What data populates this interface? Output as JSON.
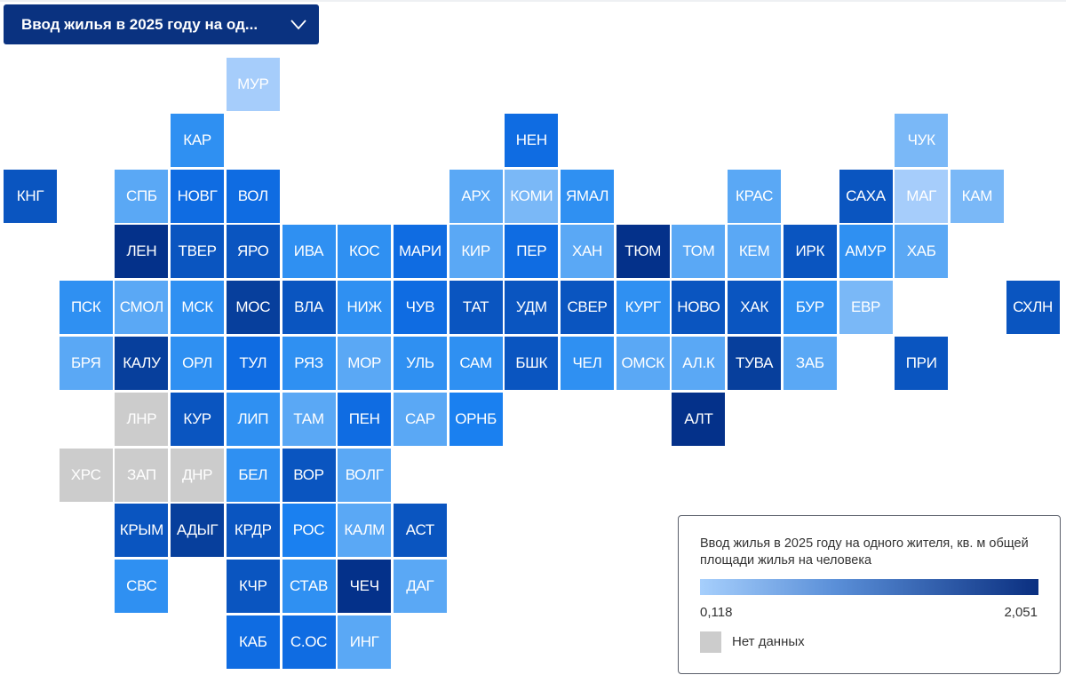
{
  "dropdown": {
    "label": "Ввод жилья в 2025 году на од...",
    "icon": "chevron-down-icon"
  },
  "legend": {
    "title": "Ввод жилья в 2025 году на одного жителя, кв. м общей площади жилья на человека",
    "min_label": "0,118",
    "max_label": "2,051",
    "no_data_label": "Нет данных",
    "color_low": "#a6cffc",
    "color_high": "#0a2f80",
    "no_data_color": "#cccccc"
  },
  "chart_data": {
    "type": "heatmap",
    "title": "Ввод жилья в 2025 году на одного жителя, кв. м общей площади жилья на человека",
    "value_range": [
      0.118,
      2.051
    ],
    "note": "values estimated from tile color shade",
    "regions": [
      {
        "name": "МУР",
        "col": 4,
        "row": 0,
        "value": 0.25
      },
      {
        "name": "КАР",
        "col": 3,
        "row": 1,
        "value": 0.9
      },
      {
        "name": "НЕН",
        "col": 9,
        "row": 1,
        "value": 1.15
      },
      {
        "name": "ЧУК",
        "col": 16,
        "row": 1,
        "value": 0.45
      },
      {
        "name": "КНГ",
        "col": 0,
        "row": 2,
        "value": 1.4
      },
      {
        "name": "СПБ",
        "col": 2,
        "row": 2,
        "value": 0.65
      },
      {
        "name": "НОВГ",
        "col": 3,
        "row": 2,
        "value": 1.15
      },
      {
        "name": "ВОЛ",
        "col": 4,
        "row": 2,
        "value": 1.15
      },
      {
        "name": "АРХ",
        "col": 8,
        "row": 2,
        "value": 0.65
      },
      {
        "name": "КОМИ",
        "col": 9,
        "row": 2,
        "value": 0.45
      },
      {
        "name": "ЯМАЛ",
        "col": 10,
        "row": 2,
        "value": 0.9
      },
      {
        "name": "КРАС",
        "col": 13,
        "row": 2,
        "value": 0.65
      },
      {
        "name": "САХА",
        "col": 15,
        "row": 2,
        "value": 1.4
      },
      {
        "name": "МАГ",
        "col": 16,
        "row": 2,
        "value": 0.25
      },
      {
        "name": "КАМ",
        "col": 17,
        "row": 2,
        "value": 0.45
      },
      {
        "name": "ЛЕН",
        "col": 2,
        "row": 3,
        "value": 1.95
      },
      {
        "name": "ТВЕР",
        "col": 3,
        "row": 3,
        "value": 1.4
      },
      {
        "name": "ЯРО",
        "col": 4,
        "row": 3,
        "value": 1.4
      },
      {
        "name": "ИВА",
        "col": 5,
        "row": 3,
        "value": 0.9
      },
      {
        "name": "КОС",
        "col": 6,
        "row": 3,
        "value": 0.9
      },
      {
        "name": "МАРИ",
        "col": 7,
        "row": 3,
        "value": 1.15
      },
      {
        "name": "КИР",
        "col": 8,
        "row": 3,
        "value": 0.65
      },
      {
        "name": "ПЕР",
        "col": 9,
        "row": 3,
        "value": 1.15
      },
      {
        "name": "ХАН",
        "col": 10,
        "row": 3,
        "value": 0.65
      },
      {
        "name": "ТЮМ",
        "col": 11,
        "row": 3,
        "value": 1.95
      },
      {
        "name": "ТОМ",
        "col": 12,
        "row": 3,
        "value": 0.65
      },
      {
        "name": "КЕМ",
        "col": 13,
        "row": 3,
        "value": 0.65
      },
      {
        "name": "ИРК",
        "col": 14,
        "row": 3,
        "value": 1.4
      },
      {
        "name": "АМУР",
        "col": 15,
        "row": 3,
        "value": 0.9
      },
      {
        "name": "ХАБ",
        "col": 16,
        "row": 3,
        "value": 0.65
      },
      {
        "name": "ПСК",
        "col": 1,
        "row": 4,
        "value": 0.9
      },
      {
        "name": "СМОЛ",
        "col": 2,
        "row": 4,
        "value": 0.65
      },
      {
        "name": "МСК",
        "col": 3,
        "row": 4,
        "value": 0.9
      },
      {
        "name": "МОС",
        "col": 4,
        "row": 4,
        "value": 1.7
      },
      {
        "name": "ВЛА",
        "col": 5,
        "row": 4,
        "value": 1.4
      },
      {
        "name": "НИЖ",
        "col": 6,
        "row": 4,
        "value": 0.9
      },
      {
        "name": "ЧУВ",
        "col": 7,
        "row": 4,
        "value": 1.15
      },
      {
        "name": "ТАТ",
        "col": 8,
        "row": 4,
        "value": 1.4
      },
      {
        "name": "УДМ",
        "col": 9,
        "row": 4,
        "value": 1.4
      },
      {
        "name": "СВЕР",
        "col": 10,
        "row": 4,
        "value": 1.4
      },
      {
        "name": "КУРГ",
        "col": 11,
        "row": 4,
        "value": 0.9
      },
      {
        "name": "НОВО",
        "col": 12,
        "row": 4,
        "value": 1.4
      },
      {
        "name": "ХАК",
        "col": 13,
        "row": 4,
        "value": 1.4
      },
      {
        "name": "БУР",
        "col": 14,
        "row": 4,
        "value": 0.9
      },
      {
        "name": "ЕВР",
        "col": 15,
        "row": 4,
        "value": 0.45
      },
      {
        "name": "СХЛН",
        "col": 18,
        "row": 4,
        "value": 1.4
      },
      {
        "name": "БРЯ",
        "col": 1,
        "row": 5,
        "value": 0.65
      },
      {
        "name": "КАЛУ",
        "col": 2,
        "row": 5,
        "value": 1.7
      },
      {
        "name": "ОРЛ",
        "col": 3,
        "row": 5,
        "value": 0.9
      },
      {
        "name": "ТУЛ",
        "col": 4,
        "row": 5,
        "value": 1.15
      },
      {
        "name": "РЯЗ",
        "col": 5,
        "row": 5,
        "value": 0.9
      },
      {
        "name": "МОР",
        "col": 6,
        "row": 5,
        "value": 0.65
      },
      {
        "name": "УЛЬ",
        "col": 7,
        "row": 5,
        "value": 0.9
      },
      {
        "name": "САМ",
        "col": 8,
        "row": 5,
        "value": 0.8
      },
      {
        "name": "БШК",
        "col": 9,
        "row": 5,
        "value": 1.4
      },
      {
        "name": "ЧЕЛ",
        "col": 10,
        "row": 5,
        "value": 0.9
      },
      {
        "name": "ОМСК",
        "col": 11,
        "row": 5,
        "value": 0.65
      },
      {
        "name": "АЛ.К",
        "col": 12,
        "row": 5,
        "value": 0.65
      },
      {
        "name": "ТУВА",
        "col": 13,
        "row": 5,
        "value": 1.7
      },
      {
        "name": "ЗАБ",
        "col": 14,
        "row": 5,
        "value": 0.65
      },
      {
        "name": "ПРИ",
        "col": 16,
        "row": 5,
        "value": 1.4
      },
      {
        "name": "ЛНР",
        "col": 2,
        "row": 6,
        "value": null
      },
      {
        "name": "КУР",
        "col": 3,
        "row": 6,
        "value": 1.4
      },
      {
        "name": "ЛИП",
        "col": 4,
        "row": 6,
        "value": 0.9
      },
      {
        "name": "ТАМ",
        "col": 5,
        "row": 6,
        "value": 0.65
      },
      {
        "name": "ПЕН",
        "col": 6,
        "row": 6,
        "value": 1.15
      },
      {
        "name": "САР",
        "col": 7,
        "row": 6,
        "value": 0.65
      },
      {
        "name": "ОРНБ",
        "col": 8,
        "row": 6,
        "value": 1.0
      },
      {
        "name": "АЛТ",
        "col": 12,
        "row": 6,
        "value": 1.95
      },
      {
        "name": "ХРС",
        "col": 1,
        "row": 7,
        "value": null
      },
      {
        "name": "ЗАП",
        "col": 2,
        "row": 7,
        "value": null
      },
      {
        "name": "ДНР",
        "col": 3,
        "row": 7,
        "value": null
      },
      {
        "name": "БЕЛ",
        "col": 4,
        "row": 7,
        "value": 0.8
      },
      {
        "name": "ВОР",
        "col": 5,
        "row": 7,
        "value": 1.4
      },
      {
        "name": "ВОЛГ",
        "col": 6,
        "row": 7,
        "value": 0.65
      },
      {
        "name": "КРЫМ",
        "col": 2,
        "row": 8,
        "value": 1.4
      },
      {
        "name": "АДЫГ",
        "col": 3,
        "row": 8,
        "value": 1.7
      },
      {
        "name": "КРДР",
        "col": 4,
        "row": 8,
        "value": 1.4
      },
      {
        "name": "РОС",
        "col": 5,
        "row": 8,
        "value": 1.0
      },
      {
        "name": "КАЛМ",
        "col": 6,
        "row": 8,
        "value": 0.65
      },
      {
        "name": "АСТ",
        "col": 7,
        "row": 8,
        "value": 1.4
      },
      {
        "name": "СВС",
        "col": 2,
        "row": 9,
        "value": 0.9
      },
      {
        "name": "КЧР",
        "col": 4,
        "row": 9,
        "value": 1.4
      },
      {
        "name": "СТАВ",
        "col": 5,
        "row": 9,
        "value": 0.9
      },
      {
        "name": "ЧЕЧ",
        "col": 6,
        "row": 9,
        "value": 1.95
      },
      {
        "name": "ДАГ",
        "col": 7,
        "row": 9,
        "value": 0.65
      },
      {
        "name": "КАБ",
        "col": 4,
        "row": 10,
        "value": 1.15
      },
      {
        "name": "С.ОС",
        "col": 5,
        "row": 10,
        "value": 1.15
      },
      {
        "name": "ИНГ",
        "col": 6,
        "row": 10,
        "value": 0.65
      }
    ]
  }
}
